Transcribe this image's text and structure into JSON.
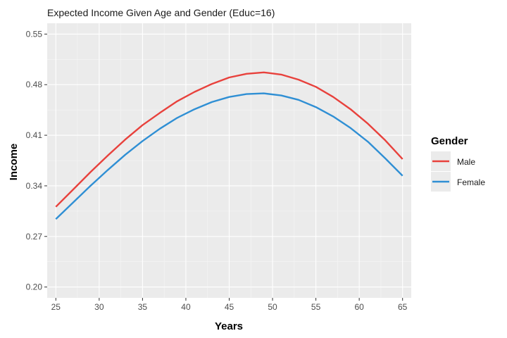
{
  "chart_data": {
    "type": "line",
    "title": "Expected Income Given Age and Gender (Educ=16)",
    "xlabel": "Years",
    "ylabel": "Income",
    "xlim": [
      24,
      66
    ],
    "ylim": [
      0.185,
      0.565
    ],
    "x_ticks": [
      25,
      30,
      35,
      40,
      45,
      50,
      55,
      60,
      65
    ],
    "y_ticks": [
      0.2,
      0.27,
      0.34,
      0.41,
      0.48,
      0.55
    ],
    "y_tick_labels": [
      "0.20",
      "0.27",
      "0.34",
      "0.41",
      "0.48",
      "0.55"
    ],
    "grid": true,
    "legend": {
      "title": "Gender",
      "position": "right"
    },
    "x": [
      25,
      27,
      29,
      31,
      33,
      35,
      37,
      39,
      41,
      43,
      45,
      47,
      49,
      51,
      53,
      55,
      57,
      59,
      61,
      63,
      65
    ],
    "series": [
      {
        "name": "Male",
        "color": "#e8413c",
        "values": [
          0.311,
          0.335,
          0.359,
          0.382,
          0.404,
          0.424,
          0.441,
          0.457,
          0.47,
          0.481,
          0.49,
          0.495,
          0.497,
          0.494,
          0.487,
          0.477,
          0.463,
          0.446,
          0.426,
          0.403,
          0.377
        ]
      },
      {
        "name": "Female",
        "color": "#2f8fd4",
        "values": [
          0.294,
          0.317,
          0.34,
          0.362,
          0.383,
          0.402,
          0.419,
          0.434,
          0.446,
          0.456,
          0.463,
          0.467,
          0.468,
          0.465,
          0.459,
          0.449,
          0.436,
          0.42,
          0.401,
          0.378,
          0.354
        ]
      }
    ]
  }
}
